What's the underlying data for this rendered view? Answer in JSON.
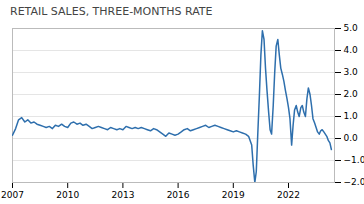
{
  "chart_data": {
    "type": "line",
    "title": "RETAIL SALES, THREE-MONTHS RATE",
    "color": "#2e6fad",
    "xlim": [
      2007,
      2024.5
    ],
    "xticks": [
      2007,
      2010,
      2013,
      2016,
      2019,
      2022
    ],
    "ylim": [
      -2,
      5
    ],
    "yticks": [
      -2,
      -1,
      0,
      1,
      2,
      3,
      4,
      5
    ],
    "grid": "y",
    "x": [
      2007.0,
      2007.17,
      2007.33,
      2007.5,
      2007.67,
      2007.83,
      2008.0,
      2008.17,
      2008.33,
      2008.5,
      2008.67,
      2008.83,
      2009.0,
      2009.17,
      2009.33,
      2009.5,
      2009.67,
      2009.83,
      2010.0,
      2010.17,
      2010.33,
      2010.5,
      2010.67,
      2010.83,
      2011.0,
      2011.17,
      2011.33,
      2011.5,
      2011.67,
      2011.83,
      2012.0,
      2012.17,
      2012.33,
      2012.5,
      2012.67,
      2012.83,
      2013.0,
      2013.17,
      2013.33,
      2013.5,
      2013.67,
      2013.83,
      2014.0,
      2014.17,
      2014.33,
      2014.5,
      2014.67,
      2014.83,
      2015.0,
      2015.17,
      2015.33,
      2015.5,
      2015.67,
      2015.83,
      2016.0,
      2016.17,
      2016.33,
      2016.5,
      2016.67,
      2016.83,
      2017.0,
      2017.17,
      2017.33,
      2017.5,
      2017.67,
      2017.83,
      2018.0,
      2018.17,
      2018.33,
      2018.5,
      2018.67,
      2018.83,
      2019.0,
      2019.17,
      2019.33,
      2019.5,
      2019.67,
      2019.83,
      2020.0,
      2020.08,
      2020.17,
      2020.25,
      2020.33,
      2020.42,
      2020.5,
      2020.58,
      2020.67,
      2020.75,
      2020.83,
      2020.92,
      2021.0,
      2021.08,
      2021.17,
      2021.25,
      2021.33,
      2021.42,
      2021.5,
      2021.58,
      2021.67,
      2021.75,
      2021.83,
      2021.92,
      2022.0,
      2022.08,
      2022.17,
      2022.25,
      2022.33,
      2022.42,
      2022.5,
      2022.58,
      2022.67,
      2022.75,
      2022.83,
      2022.92,
      2023.0,
      2023.08,
      2023.17,
      2023.25,
      2023.33,
      2023.42,
      2023.5,
      2023.58,
      2023.67,
      2023.75,
      2023.83,
      2023.92,
      2024.0,
      2024.08,
      2024.17,
      2024.25,
      2024.33
    ],
    "values": [
      0.15,
      0.45,
      0.85,
      0.95,
      0.75,
      0.85,
      0.7,
      0.75,
      0.65,
      0.6,
      0.55,
      0.5,
      0.55,
      0.45,
      0.6,
      0.55,
      0.65,
      0.55,
      0.5,
      0.7,
      0.75,
      0.65,
      0.7,
      0.6,
      0.65,
      0.55,
      0.45,
      0.5,
      0.55,
      0.5,
      0.45,
      0.4,
      0.5,
      0.45,
      0.4,
      0.45,
      0.4,
      0.55,
      0.5,
      0.45,
      0.5,
      0.45,
      0.5,
      0.45,
      0.4,
      0.35,
      0.45,
      0.4,
      0.3,
      0.2,
      0.1,
      0.25,
      0.2,
      0.15,
      0.2,
      0.3,
      0.4,
      0.45,
      0.35,
      0.4,
      0.45,
      0.5,
      0.55,
      0.6,
      0.5,
      0.55,
      0.6,
      0.55,
      0.5,
      0.45,
      0.4,
      0.35,
      0.3,
      0.35,
      0.3,
      0.25,
      0.2,
      0.1,
      -0.3,
      -1.2,
      -2.0,
      -1.5,
      0.2,
      2.0,
      3.8,
      4.9,
      4.5,
      3.2,
      2.2,
      1.2,
      0.4,
      0.2,
      1.5,
      3.0,
      4.2,
      4.5,
      3.8,
      3.2,
      2.9,
      2.6,
      2.2,
      1.8,
      1.4,
      0.9,
      -0.3,
      0.6,
      1.3,
      1.5,
      1.2,
      1.0,
      1.4,
      1.5,
      1.2,
      1.0,
      1.8,
      2.3,
      2.0,
      1.5,
      0.9,
      0.7,
      0.5,
      0.3,
      0.2,
      0.35,
      0.4,
      0.3,
      0.2,
      0.1,
      -0.1,
      -0.2,
      -0.5
    ]
  }
}
